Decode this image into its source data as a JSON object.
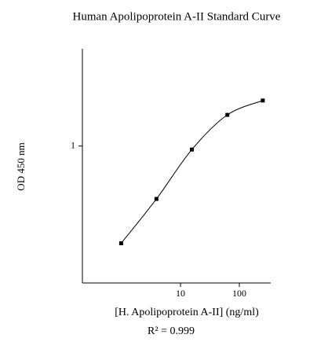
{
  "chart_data": {
    "type": "line",
    "title": "Human Apolipoprotein A-II Standard Curve",
    "x_label": "[H. Apolipoprotein A-II] (ng/ml)",
    "y_label": "OD 450 nm",
    "annotation": "R² = 0.999",
    "x": [
      0.98,
      3.9,
      15.6,
      62.5,
      250
    ],
    "series": [
      {
        "values": [
          0.24,
          0.46,
          0.95,
          1.58,
          1.95
        ],
        "color": "#000000"
      }
    ],
    "x_log": true,
    "y_log": true,
    "xlim": [
      0.215,
      341
    ],
    "ylim": [
      0.134,
      4.17
    ],
    "xticks": [
      10,
      100
    ],
    "yticks": [
      1
    ]
  }
}
